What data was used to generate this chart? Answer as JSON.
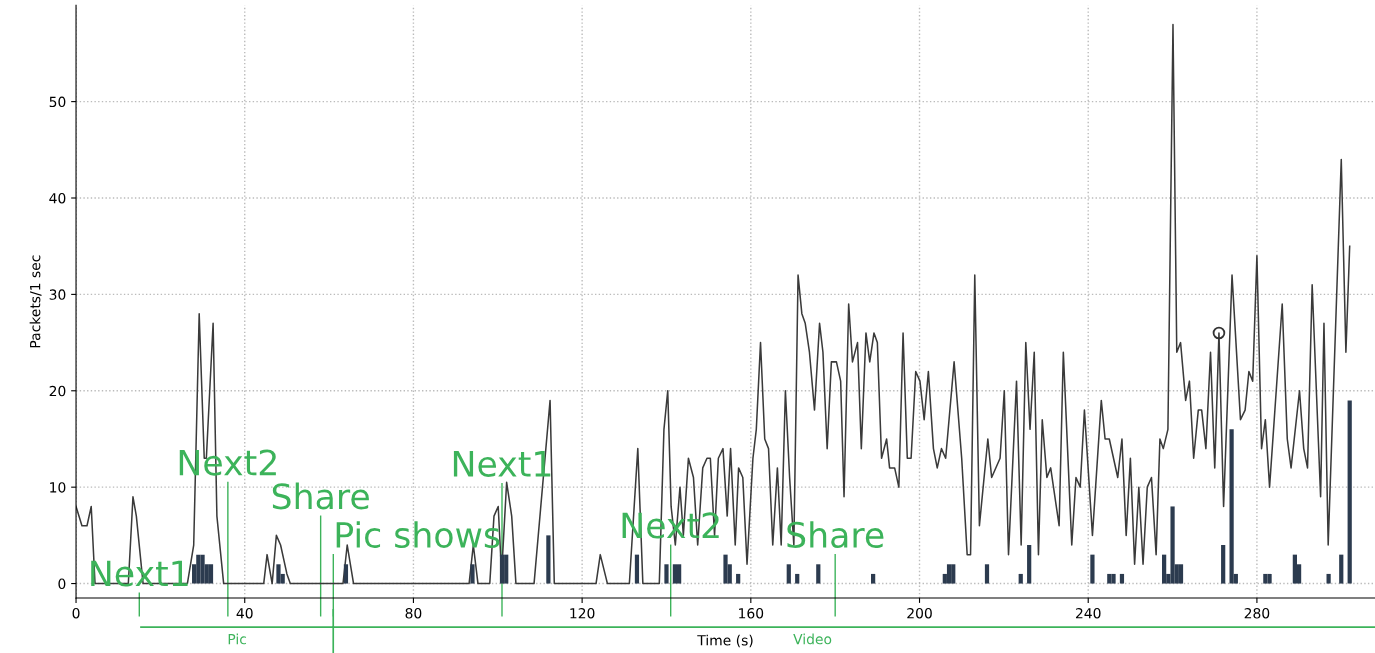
{
  "chart_data": {
    "type": "line",
    "xlabel": "Time (s)",
    "ylabel": "Packets/1 sec",
    "xlim": [
      0,
      308
    ],
    "ylim": [
      -1.5,
      60
    ],
    "xticks": [
      0,
      40,
      80,
      120,
      160,
      200,
      240,
      280
    ],
    "yticks": [
      0,
      10,
      20,
      30,
      40,
      50
    ],
    "grid": true,
    "series": [
      {
        "color": "#3a3a3a",
        "x": [
          0,
          1.4,
          2.6,
          3.6,
          4.5,
          12.4,
          13.5,
          14.3,
          15.9,
          26.4,
          27.9,
          29.2,
          30.4,
          30.9,
          32.5,
          33.4,
          35,
          44.5,
          45.3,
          46.5,
          47.5,
          48.5,
          50,
          50.8,
          63.3,
          64.3,
          65.8,
          93.2,
          94.2,
          95.3,
          98.1,
          99.1,
          100.1,
          100.9,
          102.1,
          103.3,
          104.3,
          108.6,
          112.4,
          113.4,
          123.3,
          124.3,
          126,
          131.2,
          133.2,
          134.4,
          138.3,
          139.4,
          140.3,
          141.1,
          142.1,
          143.2,
          144,
          145.2,
          146.4,
          147.4,
          148.6,
          149.6,
          150.4,
          151.4,
          152.3,
          153.4,
          154.4,
          155.2,
          156.3,
          157.1,
          158.1,
          159.1,
          160.5,
          161.3,
          162.3,
          163.3,
          164.2,
          165.2,
          166.3,
          167.2,
          168.2,
          169.2,
          170.2,
          171.2,
          172.1,
          172.9,
          173.9,
          175.1,
          176.3,
          177.1,
          178.1,
          179.1,
          180.3,
          181.3,
          182.1,
          183.2,
          184.1,
          185.3,
          186.2,
          187.3,
          188.2,
          189.2,
          190,
          191,
          192.2,
          192.9,
          194.1,
          195.1,
          196.1,
          197.1,
          198,
          199.1,
          200.1,
          201.1,
          202.1,
          203.3,
          204.2,
          205.2,
          206.2,
          208.2,
          210,
          211.3,
          212.1,
          213.1,
          214.2,
          216.2,
          217.1,
          219.1,
          220.1,
          221.1,
          223,
          224.1,
          225.2,
          226.2,
          227.2,
          228.2,
          229.1,
          230.2,
          231.1,
          233.1,
          234.1,
          236.1,
          237.1,
          238.1,
          239.1,
          241,
          243.1,
          244,
          245,
          247,
          248,
          249,
          250,
          251,
          252,
          253,
          254,
          255,
          256.1,
          257,
          257.8,
          258.9,
          260.1,
          261,
          261.9,
          263.1,
          264,
          265,
          266.1,
          266.9,
          267.9,
          269,
          270,
          271,
          272.1,
          274.1,
          276.1,
          277.2,
          278.1,
          279,
          280,
          281.1,
          282,
          283,
          286,
          287.2,
          288.1,
          290.1,
          291.1,
          292,
          293.1,
          295.1,
          295.9,
          296.9,
          300,
          301.1,
          302
        ],
        "values": [
          8,
          6,
          6,
          8,
          0,
          0,
          9,
          7,
          0,
          0,
          4,
          28,
          13,
          13,
          27,
          7,
          0,
          0,
          3,
          0,
          5,
          4,
          1,
          0,
          0,
          4,
          0,
          0,
          4,
          0,
          0,
          7,
          8,
          1,
          10.5,
          7,
          0,
          0,
          19,
          0,
          0,
          3,
          0,
          0,
          14,
          0,
          0,
          16,
          20,
          8,
          4,
          10,
          5,
          13,
          11,
          4,
          12,
          13,
          13,
          5,
          13,
          14,
          7,
          14,
          4,
          12,
          11,
          2,
          13,
          16,
          25,
          15,
          14,
          4,
          12,
          4,
          20,
          11,
          4,
          32,
          28,
          27,
          24,
          18,
          27,
          24,
          14,
          23,
          23,
          21,
          9,
          29,
          23,
          25,
          14,
          26,
          23,
          26,
          25,
          13,
          15,
          12,
          12,
          10,
          26,
          13,
          13,
          22,
          21,
          17,
          22,
          14,
          12,
          14,
          13,
          23,
          13,
          3,
          3,
          32,
          6,
          15,
          11,
          13,
          20,
          3,
          21,
          4,
          25,
          16,
          24,
          3,
          17,
          11,
          12,
          6,
          24,
          4,
          11,
          10,
          18,
          5,
          19,
          15,
          15,
          11,
          15,
          5,
          13,
          2,
          10,
          2,
          10,
          11,
          3,
          15,
          14,
          16,
          58,
          24,
          25,
          19,
          21,
          13,
          18,
          18,
          14,
          24,
          12,
          26,
          8,
          32,
          17,
          18,
          22,
          21,
          34,
          14,
          17,
          10,
          29,
          15,
          12,
          20,
          14,
          12,
          31,
          9,
          27,
          4,
          44,
          24,
          35
        ]
      },
      {
        "type": "bar",
        "color": "#2c3b4f",
        "x": [
          28,
          29,
          30,
          31,
          32,
          48,
          49,
          64,
          94,
          101,
          102,
          112,
          133,
          140,
          142,
          143,
          154,
          155,
          157,
          169,
          171,
          176,
          189,
          206,
          207,
          208,
          216,
          224,
          226,
          241,
          245,
          246,
          248,
          258,
          259,
          260,
          261,
          262,
          272,
          274,
          275,
          282,
          283,
          289,
          290,
          297,
          300,
          302
        ],
        "values": [
          2,
          3,
          3,
          2,
          2,
          2,
          1,
          2,
          2,
          3,
          3,
          5,
          3,
          2,
          2,
          2,
          3,
          2,
          1,
          2,
          1,
          2,
          1,
          1,
          2,
          2,
          2,
          1,
          4,
          3,
          1,
          1,
          1,
          3,
          1,
          8,
          2,
          2,
          4,
          16,
          1,
          1,
          1,
          3,
          2,
          1,
          3,
          19
        ]
      },
      {
        "type": "scatter",
        "color": "#333333",
        "marker": "circle",
        "x": [
          271
        ],
        "values": [
          26
        ]
      }
    ],
    "ref_lines": [
      {
        "axis": "x",
        "value": 15,
        "label": "Next1",
        "color": "#3cb35a"
      },
      {
        "axis": "x",
        "value": 36,
        "label": "Next2",
        "color": "#3cb35a"
      },
      {
        "axis": "x",
        "value": 58,
        "label": "Share",
        "color": "#3cb35a"
      },
      {
        "axis": "x",
        "value": 61,
        "label": "Pic shows",
        "color": "#3cb35a"
      },
      {
        "axis": "x",
        "value": 101,
        "label": "Next1",
        "color": "#3cb35a"
      },
      {
        "axis": "x",
        "value": 141,
        "label": "Next2",
        "color": "#3cb35a"
      },
      {
        "axis": "x",
        "value": 180,
        "label": "Share",
        "color": "#3cb35a"
      }
    ],
    "annotations": [
      "Pic",
      "Video"
    ]
  }
}
